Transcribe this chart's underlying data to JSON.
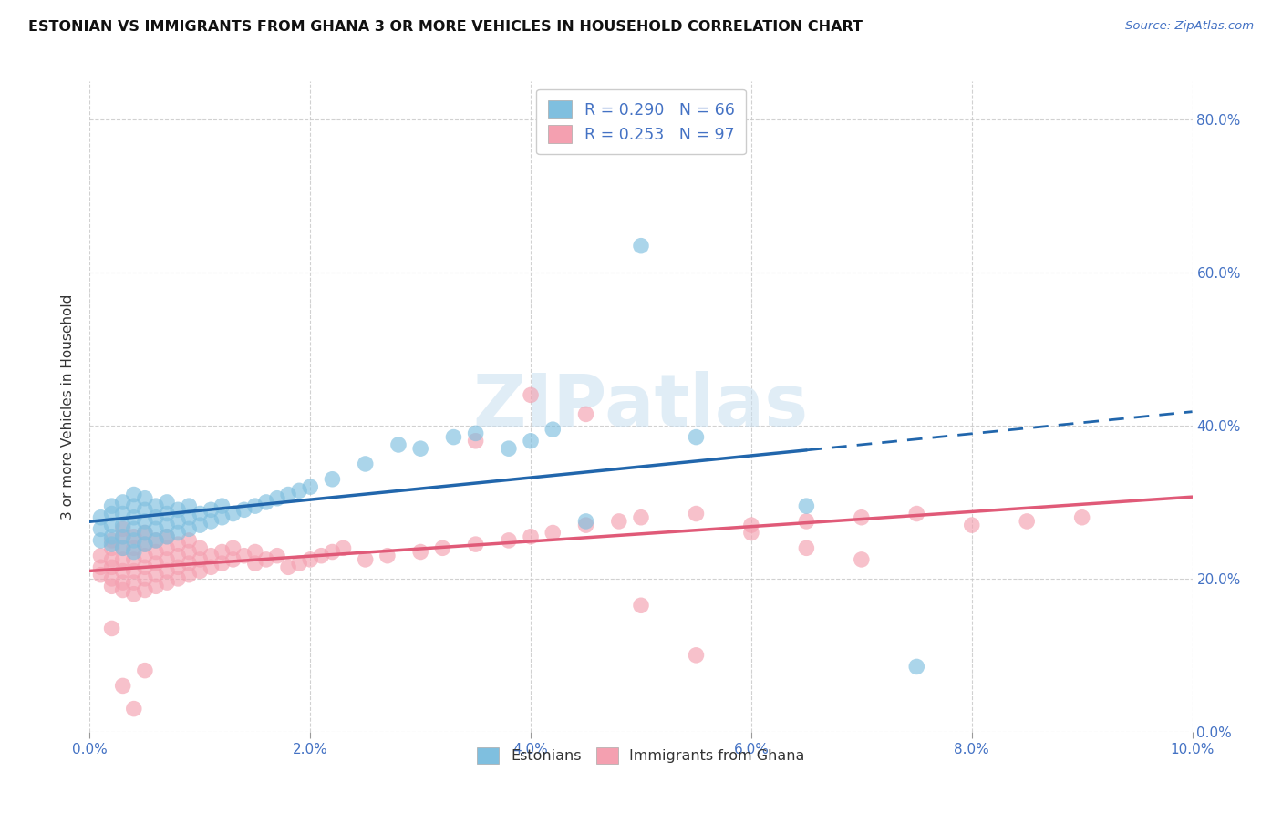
{
  "title": "ESTONIAN VS IMMIGRANTS FROM GHANA 3 OR MORE VEHICLES IN HOUSEHOLD CORRELATION CHART",
  "source": "Source: ZipAtlas.com",
  "ylabel": "3 or more Vehicles in Household",
  "xlim": [
    0.0,
    0.1
  ],
  "ylim": [
    0.0,
    0.85
  ],
  "xtick_vals": [
    0.0,
    0.02,
    0.04,
    0.06,
    0.08,
    0.1
  ],
  "xtick_labels": [
    "0.0%",
    "2.0%",
    "4.0%",
    "6.0%",
    "8.0%",
    "10.0%"
  ],
  "ytick_vals": [
    0.0,
    0.2,
    0.4,
    0.6,
    0.8
  ],
  "ytick_labels_right": [
    "0.0%",
    "20.0%",
    "40.0%",
    "60.0%",
    "80.0%"
  ],
  "blue_color": "#7fbfdf",
  "pink_color": "#f4a0b0",
  "blue_line_color": "#2166ac",
  "pink_line_color": "#e05a78",
  "blue_R": 0.29,
  "blue_N": 66,
  "pink_R": 0.253,
  "pink_N": 97,
  "watermark": "ZIPatlas",
  "legend_color": "#4472c4",
  "axis_tick_color": "#4472c4",
  "blue_scatter_x": [
    0.001,
    0.001,
    0.001,
    0.002,
    0.002,
    0.002,
    0.002,
    0.002,
    0.003,
    0.003,
    0.003,
    0.003,
    0.003,
    0.004,
    0.004,
    0.004,
    0.004,
    0.004,
    0.004,
    0.005,
    0.005,
    0.005,
    0.005,
    0.005,
    0.006,
    0.006,
    0.006,
    0.006,
    0.007,
    0.007,
    0.007,
    0.007,
    0.008,
    0.008,
    0.008,
    0.009,
    0.009,
    0.009,
    0.01,
    0.01,
    0.011,
    0.011,
    0.012,
    0.012,
    0.013,
    0.014,
    0.015,
    0.016,
    0.017,
    0.018,
    0.019,
    0.02,
    0.022,
    0.025,
    0.028,
    0.03,
    0.033,
    0.035,
    0.038,
    0.04,
    0.042,
    0.045,
    0.05,
    0.055,
    0.065,
    0.075
  ],
  "blue_scatter_y": [
    0.25,
    0.265,
    0.28,
    0.245,
    0.255,
    0.27,
    0.285,
    0.295,
    0.24,
    0.255,
    0.27,
    0.285,
    0.3,
    0.235,
    0.25,
    0.265,
    0.28,
    0.295,
    0.31,
    0.245,
    0.26,
    0.275,
    0.29,
    0.305,
    0.25,
    0.265,
    0.28,
    0.295,
    0.255,
    0.27,
    0.285,
    0.3,
    0.26,
    0.275,
    0.29,
    0.265,
    0.28,
    0.295,
    0.27,
    0.285,
    0.275,
    0.29,
    0.28,
    0.295,
    0.285,
    0.29,
    0.295,
    0.3,
    0.305,
    0.31,
    0.315,
    0.32,
    0.33,
    0.35,
    0.375,
    0.37,
    0.385,
    0.39,
    0.37,
    0.38,
    0.395,
    0.275,
    0.635,
    0.385,
    0.295,
    0.085
  ],
  "pink_scatter_x": [
    0.001,
    0.001,
    0.001,
    0.002,
    0.002,
    0.002,
    0.002,
    0.002,
    0.002,
    0.003,
    0.003,
    0.003,
    0.003,
    0.003,
    0.003,
    0.003,
    0.004,
    0.004,
    0.004,
    0.004,
    0.004,
    0.004,
    0.005,
    0.005,
    0.005,
    0.005,
    0.005,
    0.005,
    0.006,
    0.006,
    0.006,
    0.006,
    0.006,
    0.007,
    0.007,
    0.007,
    0.007,
    0.007,
    0.008,
    0.008,
    0.008,
    0.008,
    0.009,
    0.009,
    0.009,
    0.009,
    0.01,
    0.01,
    0.01,
    0.011,
    0.011,
    0.012,
    0.012,
    0.013,
    0.013,
    0.014,
    0.015,
    0.015,
    0.016,
    0.017,
    0.018,
    0.019,
    0.02,
    0.021,
    0.022,
    0.023,
    0.025,
    0.027,
    0.03,
    0.032,
    0.035,
    0.038,
    0.04,
    0.042,
    0.045,
    0.048,
    0.05,
    0.055,
    0.06,
    0.065,
    0.07,
    0.075,
    0.08,
    0.085,
    0.09,
    0.035,
    0.04,
    0.045,
    0.05,
    0.055,
    0.06,
    0.065,
    0.07,
    0.002,
    0.003,
    0.004,
    0.005
  ],
  "pink_scatter_y": [
    0.205,
    0.215,
    0.23,
    0.19,
    0.2,
    0.215,
    0.225,
    0.24,
    0.25,
    0.185,
    0.195,
    0.21,
    0.225,
    0.24,
    0.255,
    0.265,
    0.18,
    0.195,
    0.21,
    0.225,
    0.24,
    0.255,
    0.185,
    0.2,
    0.215,
    0.23,
    0.245,
    0.26,
    0.19,
    0.205,
    0.22,
    0.235,
    0.25,
    0.195,
    0.21,
    0.225,
    0.24,
    0.255,
    0.2,
    0.215,
    0.23,
    0.245,
    0.205,
    0.22,
    0.235,
    0.25,
    0.21,
    0.225,
    0.24,
    0.215,
    0.23,
    0.22,
    0.235,
    0.225,
    0.24,
    0.23,
    0.22,
    0.235,
    0.225,
    0.23,
    0.215,
    0.22,
    0.225,
    0.23,
    0.235,
    0.24,
    0.225,
    0.23,
    0.235,
    0.24,
    0.245,
    0.25,
    0.255,
    0.26,
    0.27,
    0.275,
    0.28,
    0.285,
    0.27,
    0.275,
    0.28,
    0.285,
    0.27,
    0.275,
    0.28,
    0.38,
    0.44,
    0.415,
    0.165,
    0.1,
    0.26,
    0.24,
    0.225,
    0.135,
    0.06,
    0.03,
    0.08
  ]
}
